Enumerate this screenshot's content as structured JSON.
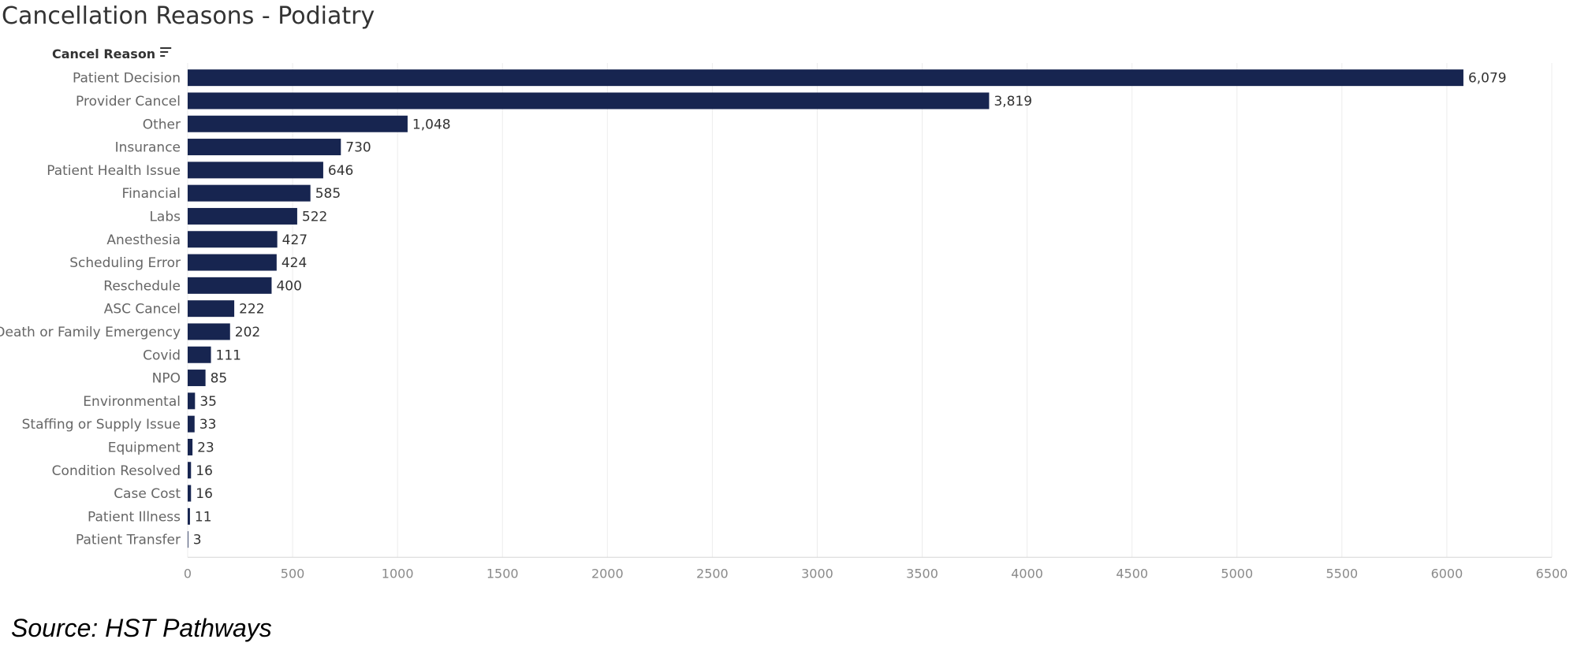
{
  "title": "Cancellation Reasons - Podiatry",
  "source": "Source: HST Pathways",
  "chart_data": {
    "type": "bar",
    "orientation": "horizontal",
    "title": "Cancellation Reasons - Podiatry",
    "category_header": "Cancel Reason",
    "sort_icon": "sort-descending-icon",
    "categories": [
      "Patient Decision",
      "Provider Cancel",
      "Other",
      "Insurance",
      "Patient Health Issue",
      "Financial",
      "Labs",
      "Anesthesia",
      "Scheduling Error",
      "Reschedule",
      "ASC Cancel",
      "Death or Family Emergency",
      "Covid",
      "NPO",
      "Environmental",
      "Staffing or Supply Issue",
      "Equipment",
      "Condition Resolved",
      "Case Cost",
      "Patient Illness",
      "Patient Transfer"
    ],
    "values": [
      6079,
      3819,
      1048,
      730,
      646,
      585,
      522,
      427,
      424,
      400,
      222,
      202,
      111,
      85,
      35,
      33,
      23,
      16,
      16,
      11,
      3
    ],
    "value_labels": [
      "6,079",
      "3,819",
      "1,048",
      "730",
      "646",
      "585",
      "522",
      "427",
      "424",
      "400",
      "222",
      "202",
      "111",
      "85",
      "35",
      "33",
      "23",
      "16",
      "16",
      "11",
      "3"
    ],
    "xlim": [
      0,
      6500
    ],
    "xticks": [
      0,
      500,
      1000,
      1500,
      2000,
      2500,
      3000,
      3500,
      4000,
      4500,
      5000,
      5500,
      6000,
      6500
    ],
    "xlabel": "",
    "ylabel": "",
    "grid": true,
    "legend": "none",
    "bar_color": "#172550"
  }
}
